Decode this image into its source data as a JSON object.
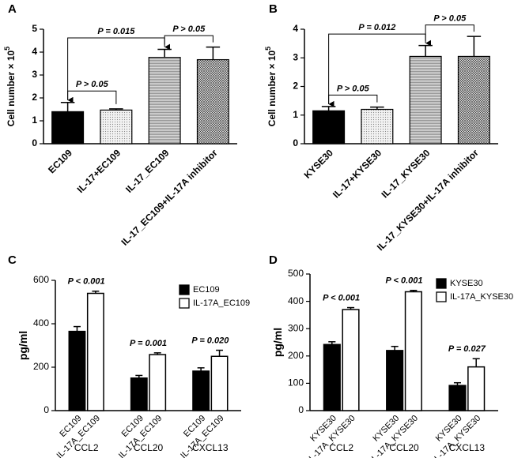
{
  "chart_data": [
    {
      "panel": "A",
      "type": "bar",
      "ylabel": "Cell number × 10",
      "ylabel_superscript": "5",
      "categories": [
        "EC109",
        "IL-17+EC109",
        "IL-17_EC109",
        "IL-17_EC109+IL-17A inhibitor"
      ],
      "values": [
        1.4,
        1.47,
        3.77,
        3.67
      ],
      "errors": [
        0.4,
        0.05,
        0.35,
        0.55
      ],
      "patterns": [
        "solid",
        "dots",
        "hlines",
        "crosshatch"
      ],
      "ylim": [
        0,
        5
      ],
      "yticks": [
        0,
        1,
        2,
        3,
        4,
        5
      ],
      "comparisons": [
        {
          "text": "P > 0.05",
          "pair": [
            "EC109",
            "IL-17+EC109"
          ]
        },
        {
          "text": "P = 0.015",
          "pair": [
            "EC109",
            "IL-17_EC109"
          ]
        },
        {
          "text": "P > 0.05",
          "pair": [
            "IL-17_EC109",
            "IL-17_EC109+IL-17A inhibitor"
          ]
        }
      ]
    },
    {
      "panel": "B",
      "type": "bar",
      "ylabel": "Cell number × 10",
      "ylabel_superscript": "5",
      "categories": [
        "KYSE30",
        "IL-17+KYSE30",
        "IL-17_KYSE30",
        "IL-17_KYSE30+IL-17A inhibitor"
      ],
      "values": [
        1.15,
        1.2,
        3.05,
        3.05
      ],
      "errors": [
        0.15,
        0.08,
        0.38,
        0.7
      ],
      "patterns": [
        "solid",
        "dots",
        "hlines",
        "crosshatch"
      ],
      "ylim": [
        0,
        4
      ],
      "yticks": [
        0,
        1,
        2,
        3,
        4
      ],
      "comparisons": [
        {
          "text": "P > 0.05",
          "pair": [
            "KYSE30",
            "IL-17+KYSE30"
          ]
        },
        {
          "text": "P = 0.012",
          "pair": [
            "KYSE30",
            "IL-17_KYSE30"
          ]
        },
        {
          "text": "P > 0.05",
          "pair": [
            "IL-17_KYSE30",
            "IL-17_KYSE30+IL-17A inhibitor"
          ]
        }
      ]
    },
    {
      "panel": "C",
      "type": "grouped_bar",
      "ylabel": "pg/ml",
      "categories": [
        "CCL2",
        "CCL20",
        "CXCL13"
      ],
      "series": [
        {
          "name": "EC109",
          "color": "#000000",
          "values": [
            365,
            150,
            182
          ],
          "errors": [
            22,
            12,
            15
          ]
        },
        {
          "name": "IL-17A_EC109",
          "color": "#ffffff",
          "values": [
            540,
            258,
            250
          ],
          "errors": [
            10,
            8,
            28
          ]
        }
      ],
      "p_values": [
        "P < 0.001",
        "P = 0.001",
        "P = 0.020"
      ],
      "ylim": [
        0,
        600
      ],
      "yticks": [
        0,
        200,
        400,
        600
      ],
      "legend": "upper right"
    },
    {
      "panel": "D",
      "type": "grouped_bar",
      "ylabel": "pg/ml",
      "categories": [
        "CCL2",
        "CCL20",
        "CXCL13"
      ],
      "series": [
        {
          "name": "KYSE30",
          "color": "#000000",
          "values": [
            242,
            220,
            92
          ],
          "errors": [
            10,
            15,
            10
          ]
        },
        {
          "name": "IL-17A_KYSE30",
          "color": "#ffffff",
          "values": [
            370,
            435,
            160
          ],
          "errors": [
            7,
            5,
            30
          ]
        }
      ],
      "p_values": [
        "P < 0.001",
        "P < 0.001",
        "P = 0.027"
      ],
      "ylim": [
        0,
        500
      ],
      "yticks": [
        0,
        100,
        200,
        300,
        400,
        500
      ],
      "legend": "upper right"
    }
  ]
}
